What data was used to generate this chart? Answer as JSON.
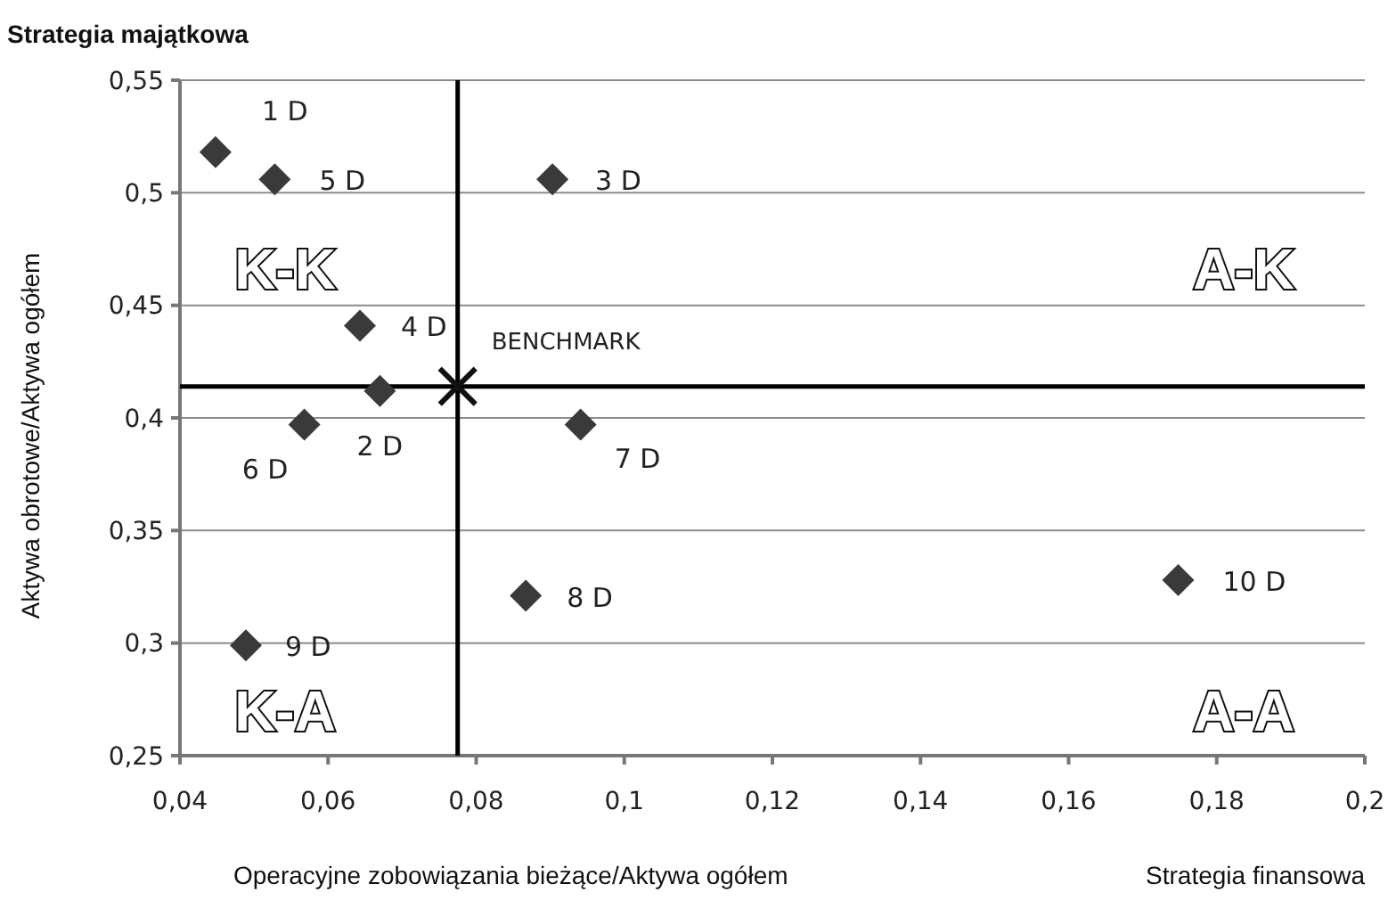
{
  "chart_data": {
    "type": "scatter",
    "title": "Strategia majątkowa",
    "xlabel": "Operacyjne zobowiązania bieżące/Aktywa ogółem",
    "ylabel": "Aktywa obrotowe/Aktywa ogółem",
    "x": [
      0.0448,
      0.067,
      0.0903,
      0.0643,
      0.0528,
      0.0568,
      0.0941,
      0.0867,
      0.0489,
      0.1748
    ],
    "series": [
      {
        "color": "#3a3a3a",
        "marker": "diamond",
        "values": [
          0.518,
          0.412,
          0.506,
          0.441,
          0.506,
          0.397,
          0.397,
          0.321,
          0.299,
          0.328
        ]
      },
      {
        "name": "BENCHMARK",
        "color": "#111111",
        "marker": "cross",
        "x": [
          0.0775
        ],
        "values": [
          0.414
        ]
      }
    ],
    "annotations": [
      {
        "text": "1 D",
        "x": 0.0448,
        "y": 0.518
      },
      {
        "text": "2 D",
        "x": 0.067,
        "y": 0.412
      },
      {
        "text": "3 D",
        "x": 0.0903,
        "y": 0.506
      },
      {
        "text": "4 D",
        "x": 0.0643,
        "y": 0.441
      },
      {
        "text": "5 D",
        "x": 0.0528,
        "y": 0.506
      },
      {
        "text": "6 D",
        "x": 0.0568,
        "y": 0.397
      },
      {
        "text": "7 D",
        "x": 0.0941,
        "y": 0.397
      },
      {
        "text": "8 D",
        "x": 0.0867,
        "y": 0.321
      },
      {
        "text": "9 D",
        "x": 0.0489,
        "y": 0.299
      },
      {
        "text": "10 D",
        "x": 0.1748,
        "y": 0.328
      },
      "K-K",
      "A-K",
      "K-A",
      "A-A",
      "Strategia finansowa"
    ],
    "ref_lines": [
      {
        "axis": "x",
        "value": 0.0775,
        "color": "#000000"
      },
      {
        "axis": "y",
        "value": 0.414,
        "color": "#000000"
      }
    ],
    "xlim": [
      0.04,
      0.2
    ],
    "xticks": [
      {
        "value": 0.04,
        "label": "0,04"
      },
      {
        "value": 0.06,
        "label": "0,06"
      },
      {
        "value": 0.08,
        "label": "0,08"
      },
      {
        "value": 0.1,
        "label": "0,1"
      },
      {
        "value": 0.12,
        "label": "0,12"
      },
      {
        "value": 0.14,
        "label": "0,14"
      },
      {
        "value": 0.16,
        "label": "0,16"
      },
      {
        "value": 0.18,
        "label": "0,18"
      },
      {
        "value": 0.2,
        "label": "0,2"
      }
    ],
    "ylim": [
      0.25,
      0.55
    ],
    "yticks": [
      {
        "value": 0.25,
        "label": "0,25"
      },
      {
        "value": 0.3,
        "label": "0,3"
      },
      {
        "value": 0.35,
        "label": "0,35"
      },
      {
        "value": 0.4,
        "label": "0,4"
      },
      {
        "value": 0.45,
        "label": "0,45"
      },
      {
        "value": 0.5,
        "label": "0,5"
      },
      {
        "value": 0.55,
        "label": "0,55"
      }
    ],
    "grid": "y"
  }
}
